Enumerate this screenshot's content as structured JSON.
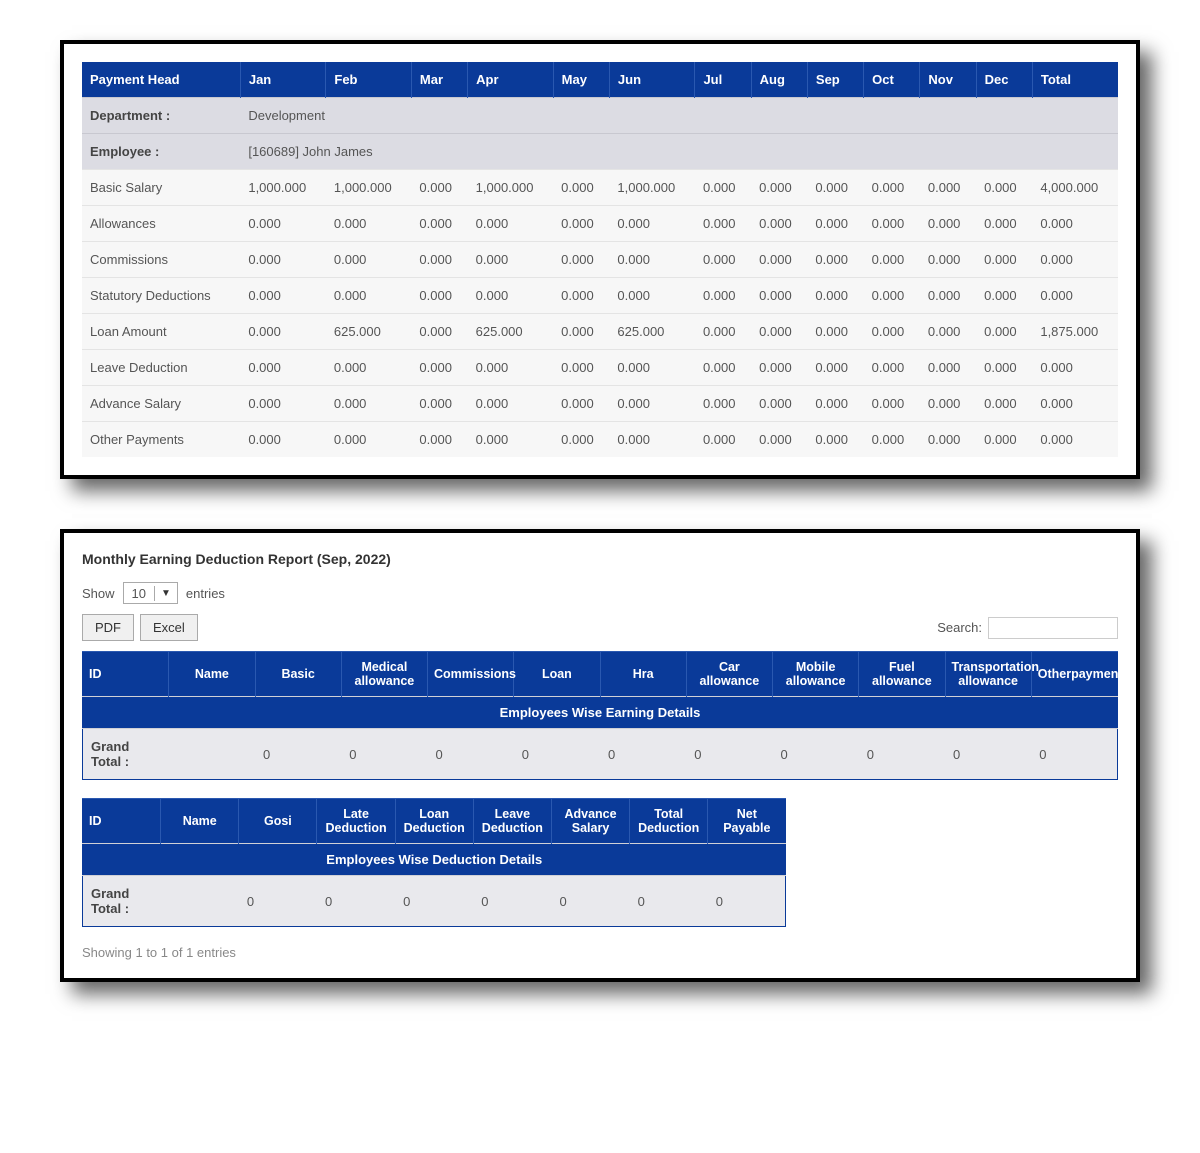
{
  "top": {
    "headers": [
      "Payment Head",
      "Jan",
      "Feb",
      "Mar",
      "Apr",
      "May",
      "Jun",
      "Jul",
      "Aug",
      "Sep",
      "Oct",
      "Nov",
      "Dec",
      "Total"
    ],
    "department_label": "Department :",
    "department_value": "Development",
    "employee_label": "Employee :",
    "employee_value": "[160689] John James",
    "rows": [
      {
        "head": "Basic Salary",
        "vals": [
          "1,000.000",
          "1,000.000",
          "0.000",
          "1,000.000",
          "0.000",
          "1,000.000",
          "0.000",
          "0.000",
          "0.000",
          "0.000",
          "0.000",
          "0.000",
          "4,000.000"
        ]
      },
      {
        "head": "Allowances",
        "vals": [
          "0.000",
          "0.000",
          "0.000",
          "0.000",
          "0.000",
          "0.000",
          "0.000",
          "0.000",
          "0.000",
          "0.000",
          "0.000",
          "0.000",
          "0.000"
        ]
      },
      {
        "head": "Commissions",
        "vals": [
          "0.000",
          "0.000",
          "0.000",
          "0.000",
          "0.000",
          "0.000",
          "0.000",
          "0.000",
          "0.000",
          "0.000",
          "0.000",
          "0.000",
          "0.000"
        ]
      },
      {
        "head": "Statutory Deductions",
        "vals": [
          "0.000",
          "0.000",
          "0.000",
          "0.000",
          "0.000",
          "0.000",
          "0.000",
          "0.000",
          "0.000",
          "0.000",
          "0.000",
          "0.000",
          "0.000"
        ]
      },
      {
        "head": "Loan Amount",
        "vals": [
          "0.000",
          "625.000",
          "0.000",
          "625.000",
          "0.000",
          "625.000",
          "0.000",
          "0.000",
          "0.000",
          "0.000",
          "0.000",
          "0.000",
          "1,875.000"
        ]
      },
      {
        "head": "Leave Deduction",
        "vals": [
          "0.000",
          "0.000",
          "0.000",
          "0.000",
          "0.000",
          "0.000",
          "0.000",
          "0.000",
          "0.000",
          "0.000",
          "0.000",
          "0.000",
          "0.000"
        ]
      },
      {
        "head": "Advance Salary",
        "vals": [
          "0.000",
          "0.000",
          "0.000",
          "0.000",
          "0.000",
          "0.000",
          "0.000",
          "0.000",
          "0.000",
          "0.000",
          "0.000",
          "0.000",
          "0.000"
        ]
      },
      {
        "head": "Other Payments",
        "vals": [
          "0.000",
          "0.000",
          "0.000",
          "0.000",
          "0.000",
          "0.000",
          "0.000",
          "0.000",
          "0.000",
          "0.000",
          "0.000",
          "0.000",
          "0.000"
        ]
      }
    ]
  },
  "report": {
    "title": "Monthly Earning Deduction Report (Sep, 2022)",
    "show_label": "Show",
    "entries_label": "entries",
    "page_length": "10",
    "pdf_label": "PDF",
    "excel_label": "Excel",
    "search_label": "Search:",
    "search_value": "",
    "earning": {
      "title": "Employees Wise Earning Details",
      "columns": [
        "ID",
        "Name",
        "Basic",
        "Medical allowance",
        "Commissions",
        "Loan",
        "Hra",
        "Car allowance",
        "Mobile allowance",
        "Fuel allowance",
        "Transportation allowance",
        "Otherpaymen"
      ],
      "grand_total_label": "Grand Total :",
      "grand_total_vals": [
        "",
        "0",
        "0",
        "0",
        "0",
        "0",
        "0",
        "0",
        "0",
        "0",
        "0"
      ]
    },
    "deduction": {
      "title": "Employees Wise Deduction Details",
      "columns": [
        "ID",
        "Name",
        "Gosi",
        "Late Deduction",
        "Loan Deduction",
        "Leave Deduction",
        "Advance Salary",
        "Total Deduction",
        "Net Payable"
      ],
      "grand_total_label": "Grand Total :",
      "grand_total_vals": [
        "",
        "0",
        "0",
        "0",
        "0",
        "0",
        "0",
        "0"
      ]
    },
    "footer_info": "Showing 1 to 1 of 1 entries"
  },
  "colors": {
    "header_blue": "#0a3a99",
    "meta_bg": "#dcdce3",
    "row_bg": "#f7f7f7",
    "gt_bg": "#e9e9ed"
  }
}
